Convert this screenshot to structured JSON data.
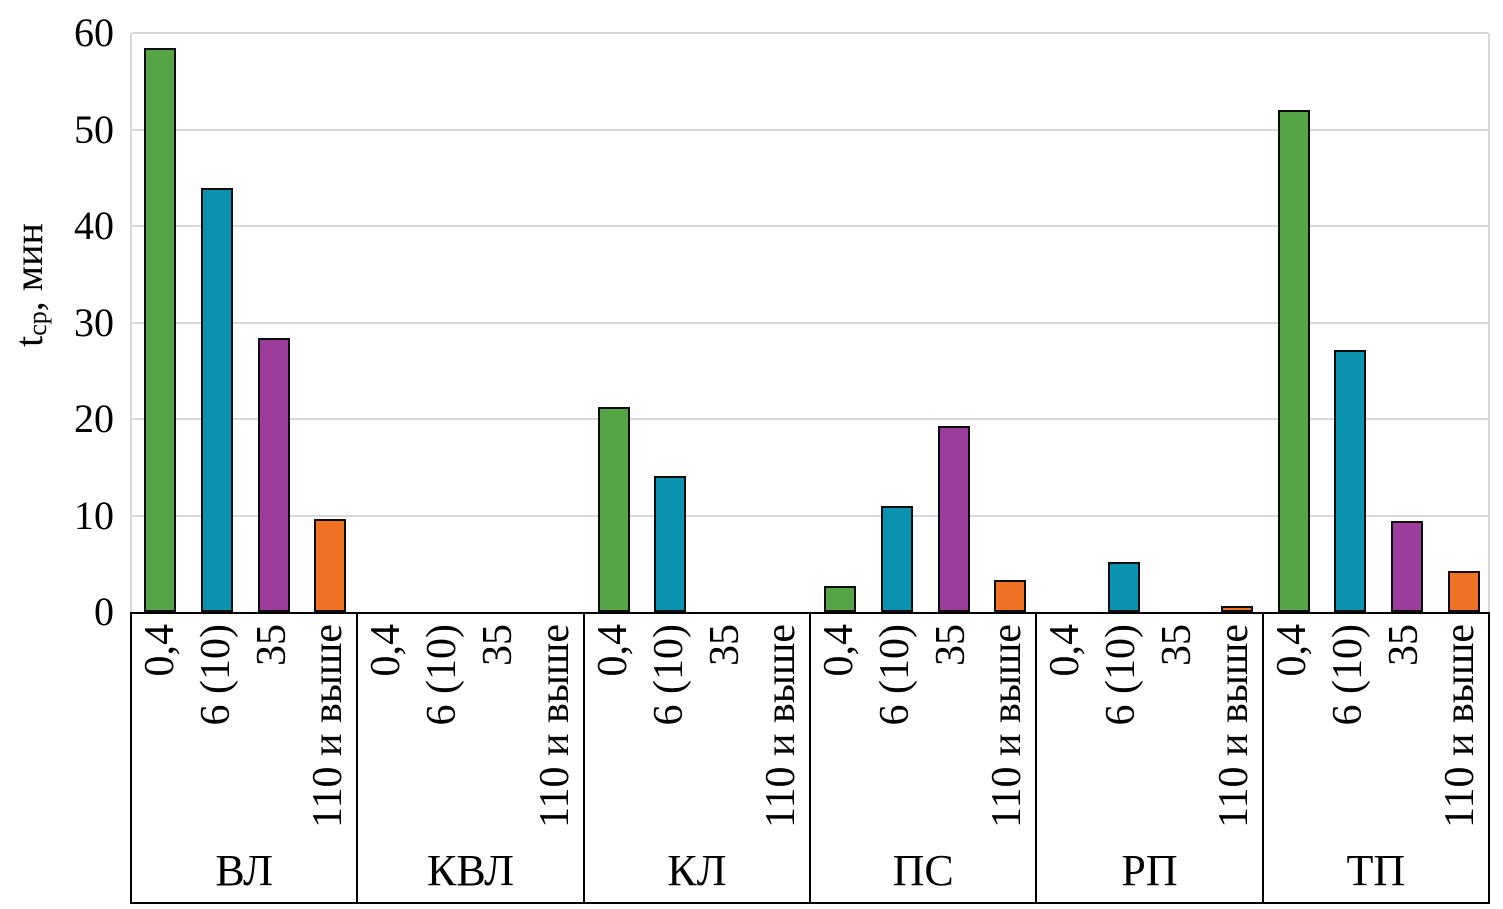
{
  "chart_data": {
    "type": "bar",
    "title": "",
    "ylabel": {
      "base": "t",
      "subscript": "ср",
      "rest": ", мин"
    },
    "y_axis": {
      "min": 0,
      "max": 60,
      "step": 10,
      "ticks": [
        "0",
        "10",
        "20",
        "30",
        "40",
        "50",
        "60"
      ]
    },
    "grid": true,
    "legend": "none",
    "series_labels": [
      "0,4",
      "6 (10)",
      "35",
      "110 и выше"
    ],
    "series_colors": [
      "#55a546",
      "#0a92b1",
      "#9c3d9c",
      "#f07124"
    ],
    "grid_color": "#d9d9d9",
    "bar_border_color": "#0d0d0d",
    "groups": [
      {
        "label": "ВЛ",
        "values": [
          58.4,
          43.9,
          28.4,
          9.6
        ]
      },
      {
        "label": "КВЛ",
        "values": [
          0,
          0,
          0,
          0
        ]
      },
      {
        "label": "КЛ",
        "values": [
          21.2,
          14.1,
          0,
          0
        ]
      },
      {
        "label": "ПС",
        "values": [
          2.7,
          11.0,
          19.3,
          3.3
        ]
      },
      {
        "label": "РП",
        "values": [
          0,
          5.2,
          0,
          0.6
        ]
      },
      {
        "label": "ТП",
        "values": [
          52.0,
          27.2,
          9.4,
          4.3
        ]
      }
    ]
  }
}
